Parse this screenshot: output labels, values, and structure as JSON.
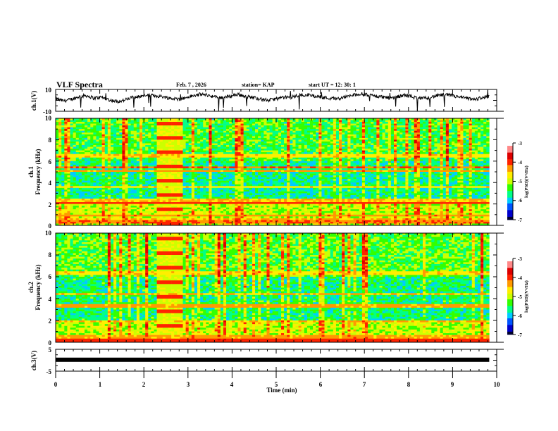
{
  "header": {
    "title": "VLF Spectra",
    "date": "Feb. 7  , 2026",
    "station": "station= KAP",
    "start_ut": "start  UT  =   12: 30: 1"
  },
  "colors": {
    "colormap": [
      "#000033",
      "#0000cc",
      "#0055ff",
      "#00ccff",
      "#00ff88",
      "#33ff00",
      "#ccff00",
      "#ffee00",
      "#ff9900",
      "#ff2200",
      "#dd0000",
      "#ff8888",
      "#ffffff"
    ],
    "trace": "#000000",
    "axes": "#000000"
  },
  "chart_data": [
    {
      "type": "line",
      "name": "ch1-waveform",
      "ylabel": "ch.1(V)",
      "ylim": [
        -10,
        10
      ],
      "yticks": [
        "10",
        "-10"
      ],
      "xlim": [
        0,
        10
      ],
      "x_end": 9.83,
      "description_values": {
        "mean": 2,
        "envelope": [
          -3,
          8
        ]
      },
      "values": [
        1.5,
        -0.5,
        0.8,
        3.2,
        4.5,
        2.0,
        3.0,
        0.5,
        -1.0,
        0.0,
        2.5,
        3.5,
        5.0,
        4.2,
        3.5,
        2.0,
        1.0,
        2.2,
        4.0,
        5.5,
        4.8,
        3.0,
        2.5,
        4.0,
        5.5,
        3.5,
        2.8,
        1.0,
        0.0,
        1.5,
        2.5,
        3.0,
        4.5,
        5.2,
        4.0,
        3.0,
        2.0,
        1.5,
        3.0,
        4.5,
        6.0,
        5.0,
        4.0,
        3.2,
        2.0,
        3.5,
        4.8,
        3.0,
        1.5,
        2.5,
        4.0,
        5.0,
        4.5,
        3.0,
        2.0,
        0.5,
        2.5,
        3.2
      ]
    },
    {
      "type": "heatmap",
      "name": "ch1-spectrogram",
      "ylabel": "ch.1\nFrequency (kHz)",
      "ylabel_line1": "ch.1",
      "ylabel_line2": "Frequency  (kHz)",
      "ylim": [
        0,
        10
      ],
      "yticks": [
        "0",
        "2",
        "4",
        "6",
        "8",
        "10"
      ],
      "xlim": [
        0,
        10
      ],
      "x_end": 9.83,
      "colorbar": {
        "label": "log(PSD)(V²/Hz)",
        "range": [
          -7,
          -3
        ],
        "ticks": [
          "-7",
          "-6",
          "-5",
          "-4",
          "-3"
        ]
      },
      "bands_khz": [
        {
          "f": 0.3,
          "level": -4.2
        },
        {
          "f": 0.6,
          "level": -4.5
        },
        {
          "f": 0.9,
          "level": -4.3
        },
        {
          "f": 2.1,
          "level": -4.0
        },
        {
          "f": 2.3,
          "level": -4.5
        },
        {
          "f": 3.6,
          "level": -4.6
        },
        {
          "f": 5.1,
          "level": -4.4
        },
        {
          "f": 5.4,
          "level": -4.2
        },
        {
          "f": 6.5,
          "level": -4.6
        }
      ],
      "burst_interval_min": [
        2.3,
        2.9
      ],
      "background_levels": {
        "low_0_2": -5.0,
        "mid_2_6": -5.7,
        "high_6_10": -5.4
      }
    },
    {
      "type": "heatmap",
      "name": "ch2-spectrogram",
      "ylabel_line1": "ch.2",
      "ylabel_line2": "Frequency  (kHz)",
      "ylim": [
        0,
        10
      ],
      "yticks": [
        "0",
        "2",
        "4",
        "6",
        "8",
        "10"
      ],
      "xlim": [
        0,
        10
      ],
      "x_end": 9.83,
      "colorbar": {
        "label": "log(PSD)(V²/Hz)",
        "range": [
          -7,
          -3
        ],
        "ticks": [
          "-7",
          "-6",
          "-5",
          "-4",
          "-3"
        ]
      },
      "bands_khz": [
        {
          "f": 0.2,
          "level": -4.0
        },
        {
          "f": 0.5,
          "level": -4.4
        },
        {
          "f": 1.9,
          "level": -4.5
        },
        {
          "f": 3.3,
          "level": -4.4
        },
        {
          "f": 4.4,
          "level": -4.5
        },
        {
          "f": 6.3,
          "level": -4.6
        }
      ],
      "burst_interval_min": [
        2.3,
        2.9
      ],
      "background_levels": {
        "low_0_2": -5.0,
        "mid_2_6": -5.6,
        "high_6_10": -5.3
      }
    },
    {
      "type": "line",
      "name": "ch3-waveform",
      "ylabel": "ch.3(V)",
      "ylim": [
        -5,
        5
      ],
      "yticks": [
        "5",
        "-5"
      ],
      "xlim": [
        0,
        10
      ],
      "x_end": 9.83,
      "values": [
        0.4,
        0.4
      ]
    }
  ],
  "xaxis": {
    "label": "Time  (min)",
    "ticks": [
      "0",
      "1",
      "2",
      "3",
      "4",
      "5",
      "6",
      "7",
      "8",
      "9",
      "10"
    ]
  }
}
